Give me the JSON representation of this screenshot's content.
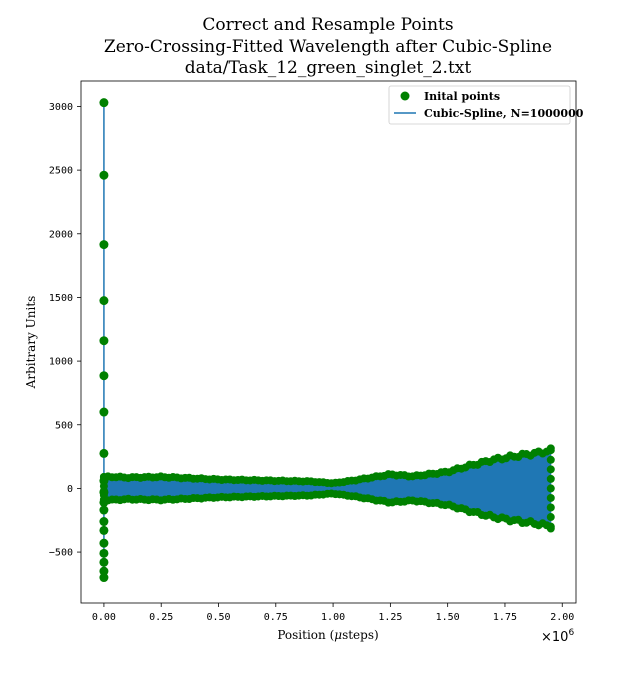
{
  "chart_data": {
    "type": "line",
    "title_lines": [
      "Correct and Resample Points",
      "Zero-Crossing-Fitted Wavelength after Cubic-Spline",
      "data/Task_12_green_singlet_2.txt"
    ],
    "xlabel": "Position ($\\mu$steps)",
    "xlabel_prefix": "Position (",
    "xlabel_mu": "μ",
    "xlabel_suffix": "steps)",
    "ylabel": "Arbitrary Units",
    "x_offset_base": "×10",
    "x_offset_exp": "6",
    "xlim": [
      -0.1,
      2.06
    ],
    "ylim": [
      -900,
      3200
    ],
    "xticks": [
      0.0,
      0.25,
      0.5,
      0.75,
      1.0,
      1.25,
      1.5,
      1.75,
      2.0
    ],
    "xtick_labels": [
      "0.00",
      "0.25",
      "0.50",
      "0.75",
      "1.00",
      "1.25",
      "1.50",
      "1.75",
      "2.00"
    ],
    "yticks": [
      -500,
      0,
      500,
      1000,
      1500,
      2000,
      2500,
      3000
    ],
    "ytick_labels": [
      "−500",
      "0",
      "500",
      "1000",
      "1500",
      "2000",
      "2500",
      "3000"
    ],
    "legend_position": "upper right",
    "series": [
      {
        "name": "Inital points",
        "kind": "scatter",
        "color": "#008000",
        "spike_points_x": 0.0,
        "spike_points_y": [
          3030,
          2460,
          1915,
          1475,
          1160,
          885,
          600,
          275,
          60,
          -30,
          -110,
          -170,
          -260,
          -330,
          -430,
          -510,
          -580,
          -650,
          -700
        ],
        "envelope_x": [
          0.0,
          0.05,
          0.1,
          0.25,
          0.5,
          0.75,
          0.9,
          1.0,
          1.1,
          1.25,
          1.35,
          1.5,
          1.6,
          1.7,
          1.8,
          1.9,
          1.95
        ],
        "envelope_upper": [
          90,
          90,
          85,
          90,
          70,
          60,
          55,
          40,
          65,
          110,
          95,
          130,
          180,
          225,
          255,
          280,
          300
        ],
        "envelope_lower": [
          -90,
          -90,
          -85,
          -90,
          -70,
          -60,
          -55,
          -40,
          -65,
          -110,
          -95,
          -130,
          -180,
          -225,
          -255,
          -280,
          -300
        ]
      },
      {
        "name": "Cubic-Spline, N=1000000",
        "kind": "line",
        "color": "#1f77b4"
      }
    ]
  }
}
